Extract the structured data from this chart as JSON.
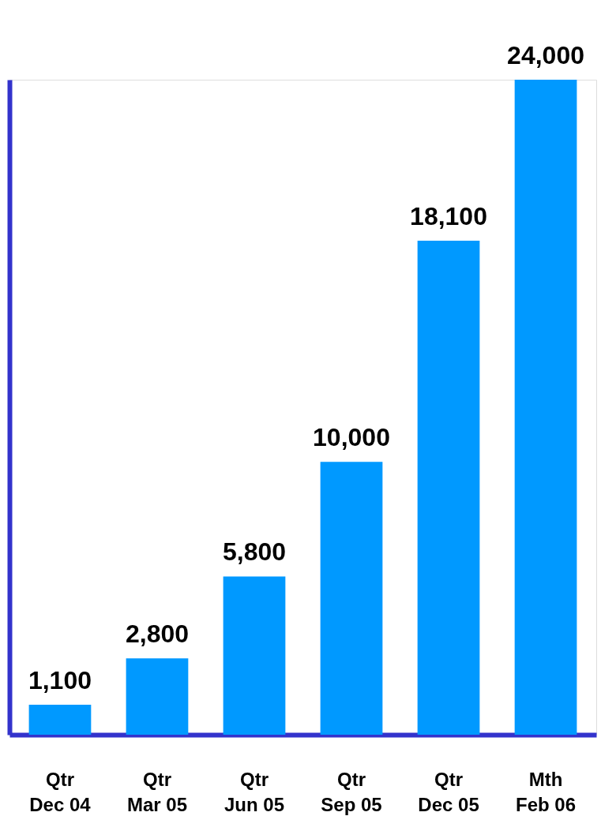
{
  "chart_data": {
    "type": "bar",
    "categories": [
      "Qtr\nDec 04",
      "Qtr\nMar 05",
      "Qtr\nJun 05",
      "Qtr\nSep 05",
      "Qtr\nDec 05",
      "Mth\nFeb 06"
    ],
    "values": [
      1100,
      2800,
      5800,
      10000,
      18100,
      24000
    ],
    "value_labels": [
      "1,100",
      "2,800",
      "5,800",
      "10,000",
      "18,100",
      "24,000"
    ],
    "color": "#0099ff",
    "tick_labels": "x"
  }
}
